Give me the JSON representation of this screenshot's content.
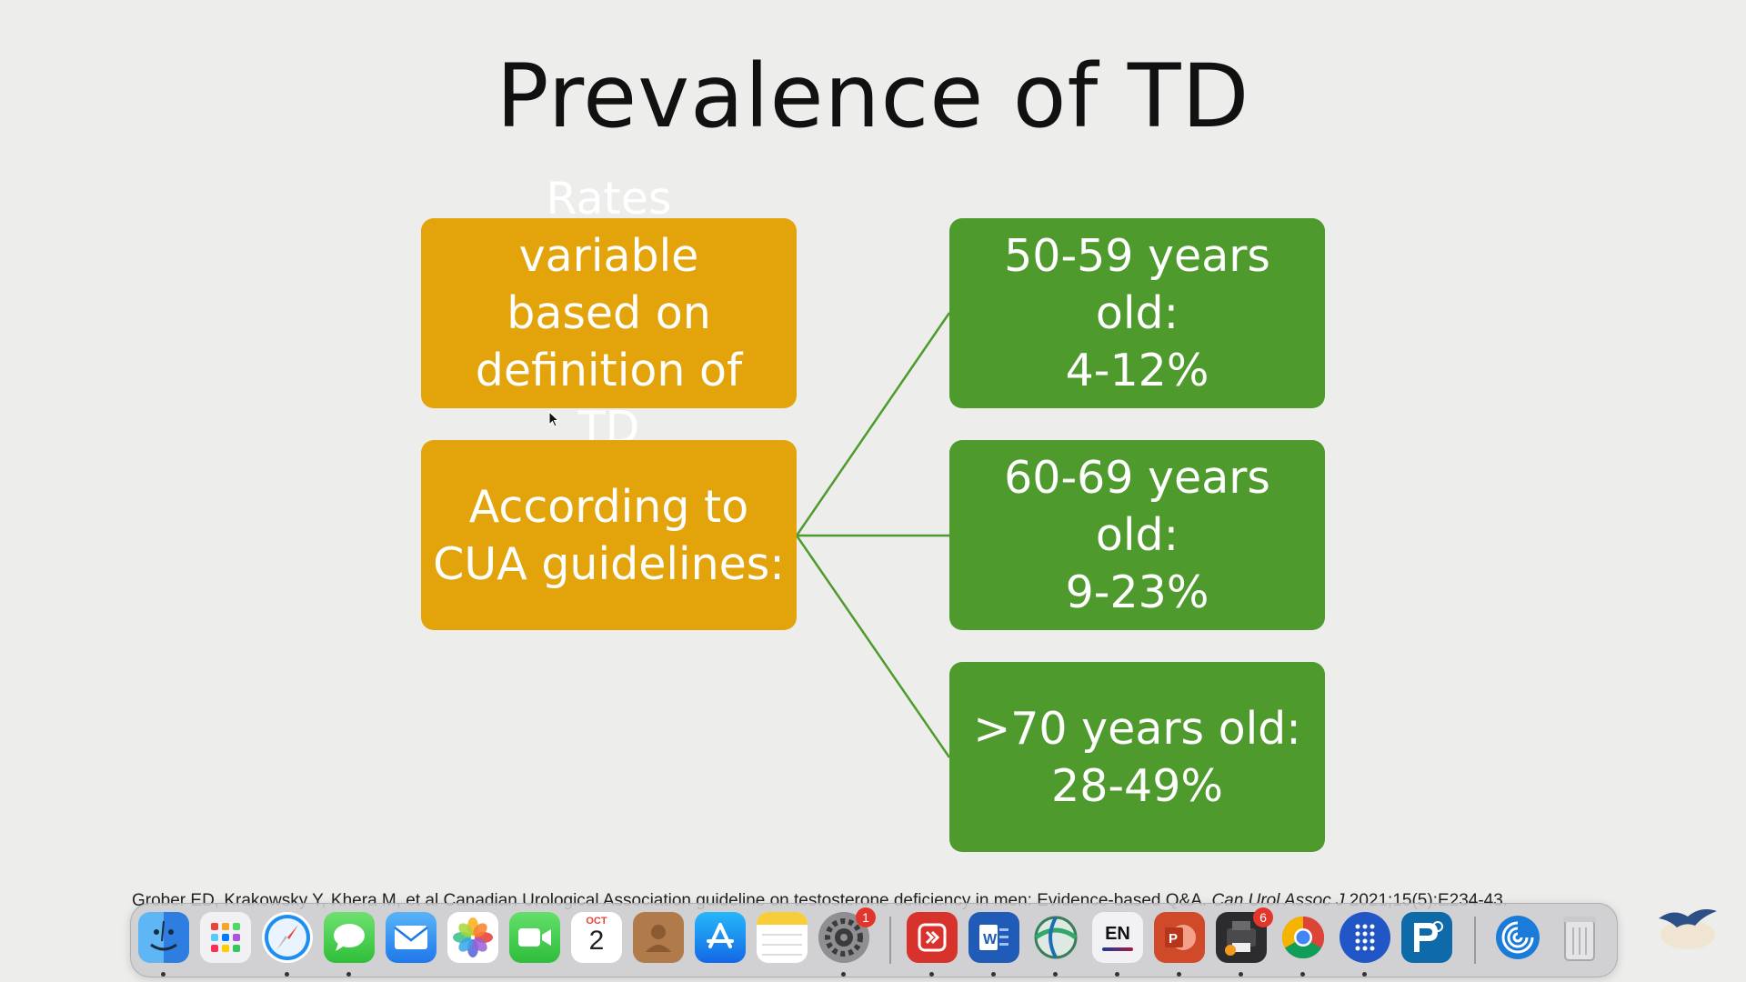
{
  "slide": {
    "title": "Prevalence of TD",
    "left_boxes": [
      {
        "text": "Rates variable based on definition of TD",
        "color": "#e3a30b"
      },
      {
        "text": "According to CUA guidelines:",
        "color": "#e3a30b"
      }
    ],
    "right_boxes": [
      {
        "line1": "50-59 years old:",
        "line2": "4-12%",
        "color": "#4e9a2d"
      },
      {
        "line1": "60-69 years old:",
        "line2": "9-23%",
        "color": "#4e9a2d"
      },
      {
        "line1": ">70 years old:",
        "line2": "28-49%",
        "color": "#4e9a2d"
      }
    ],
    "citation": {
      "text": "Grober ED, Krakowsky Y, Khera M, et al Canadian Urological Association guideline on testosterone deficiency in men: Evidence-based Q&A.",
      "journal": "Can Urol Assoc J",
      "ref": "2021;15(5):E234-43."
    }
  },
  "dock": {
    "calendar_month": "OCT",
    "calendar_day": "2",
    "settings_badge": "1",
    "keyboard_label": "EN",
    "app6_badge": "6",
    "items": [
      {
        "name": "finder-icon"
      },
      {
        "name": "launchpad-icon"
      },
      {
        "name": "safari-icon"
      },
      {
        "name": "messages-icon"
      },
      {
        "name": "mail-icon"
      },
      {
        "name": "photos-icon"
      },
      {
        "name": "facetime-icon"
      },
      {
        "name": "calendar-icon"
      },
      {
        "name": "contacts-icon"
      },
      {
        "name": "app-store-icon"
      },
      {
        "name": "notes-icon"
      },
      {
        "name": "system-settings-icon"
      },
      {
        "name": "remote-desktop-icon"
      },
      {
        "name": "word-icon"
      },
      {
        "name": "globe-app-icon"
      },
      {
        "name": "keyboard-language-icon"
      },
      {
        "name": "powerpoint-icon"
      },
      {
        "name": "printer-app-icon"
      },
      {
        "name": "chrome-icon"
      },
      {
        "name": "dots-app-icon"
      },
      {
        "name": "p-app-icon"
      },
      {
        "name": "swirl-app-icon"
      },
      {
        "name": "trash-icon"
      }
    ]
  },
  "colors": {
    "gold": "#e3a30b",
    "green": "#4e9a2d",
    "connector": "#4e9a2d",
    "background": "#ededeb"
  }
}
